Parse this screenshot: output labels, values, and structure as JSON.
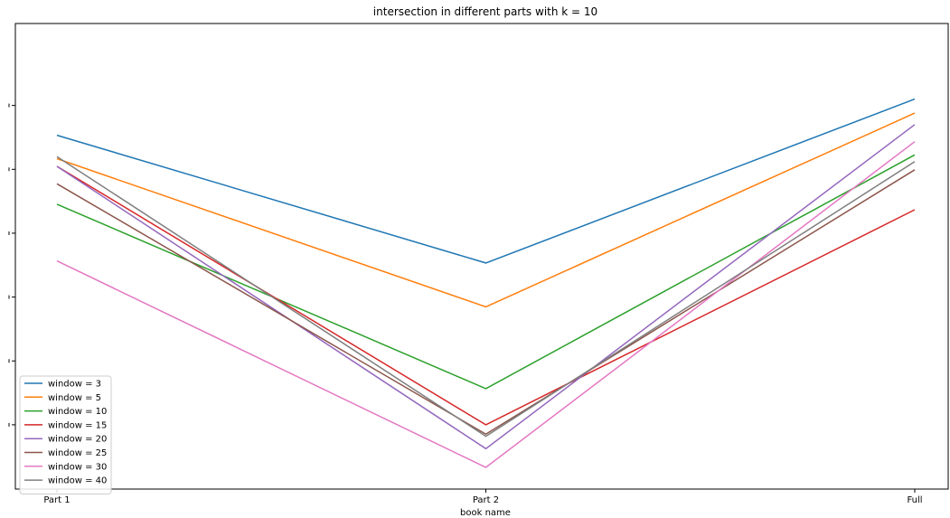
{
  "chart_data": {
    "type": "line",
    "title": "intersection in different parts with k = 10",
    "xlabel": "book name",
    "ylabel": "",
    "categories": [
      "Part 1",
      "Part 2",
      "Full"
    ],
    "ylim": [
      0,
      100
    ],
    "yticks": [
      10,
      25,
      40,
      55,
      70,
      85
    ],
    "grid": false,
    "legend_position": "lower-left",
    "series": [
      {
        "name": "window = 3",
        "color": "#1f77b4",
        "values": [
          78.0,
          48.0,
          86.5
        ]
      },
      {
        "name": "window = 5",
        "color": "#ff7f0e",
        "values": [
          72.5,
          37.7,
          83.2
        ]
      },
      {
        "name": "window = 10",
        "color": "#2ca02c",
        "values": [
          61.8,
          18.5,
          73.4
        ]
      },
      {
        "name": "window = 15",
        "color": "#d62728",
        "values": [
          70.7,
          10.0,
          60.5
        ]
      },
      {
        "name": "window = 20",
        "color": "#9467bd",
        "values": [
          70.7,
          4.4,
          80.5
        ]
      },
      {
        "name": "window = 25",
        "color": "#8c564b",
        "values": [
          66.6,
          7.8,
          69.9
        ]
      },
      {
        "name": "window = 30",
        "color": "#e377c2",
        "values": [
          48.5,
          0.0,
          76.5
        ]
      },
      {
        "name": "window = 40",
        "color": "#7f7f7f",
        "values": [
          73.0,
          7.3,
          71.8
        ]
      }
    ]
  }
}
